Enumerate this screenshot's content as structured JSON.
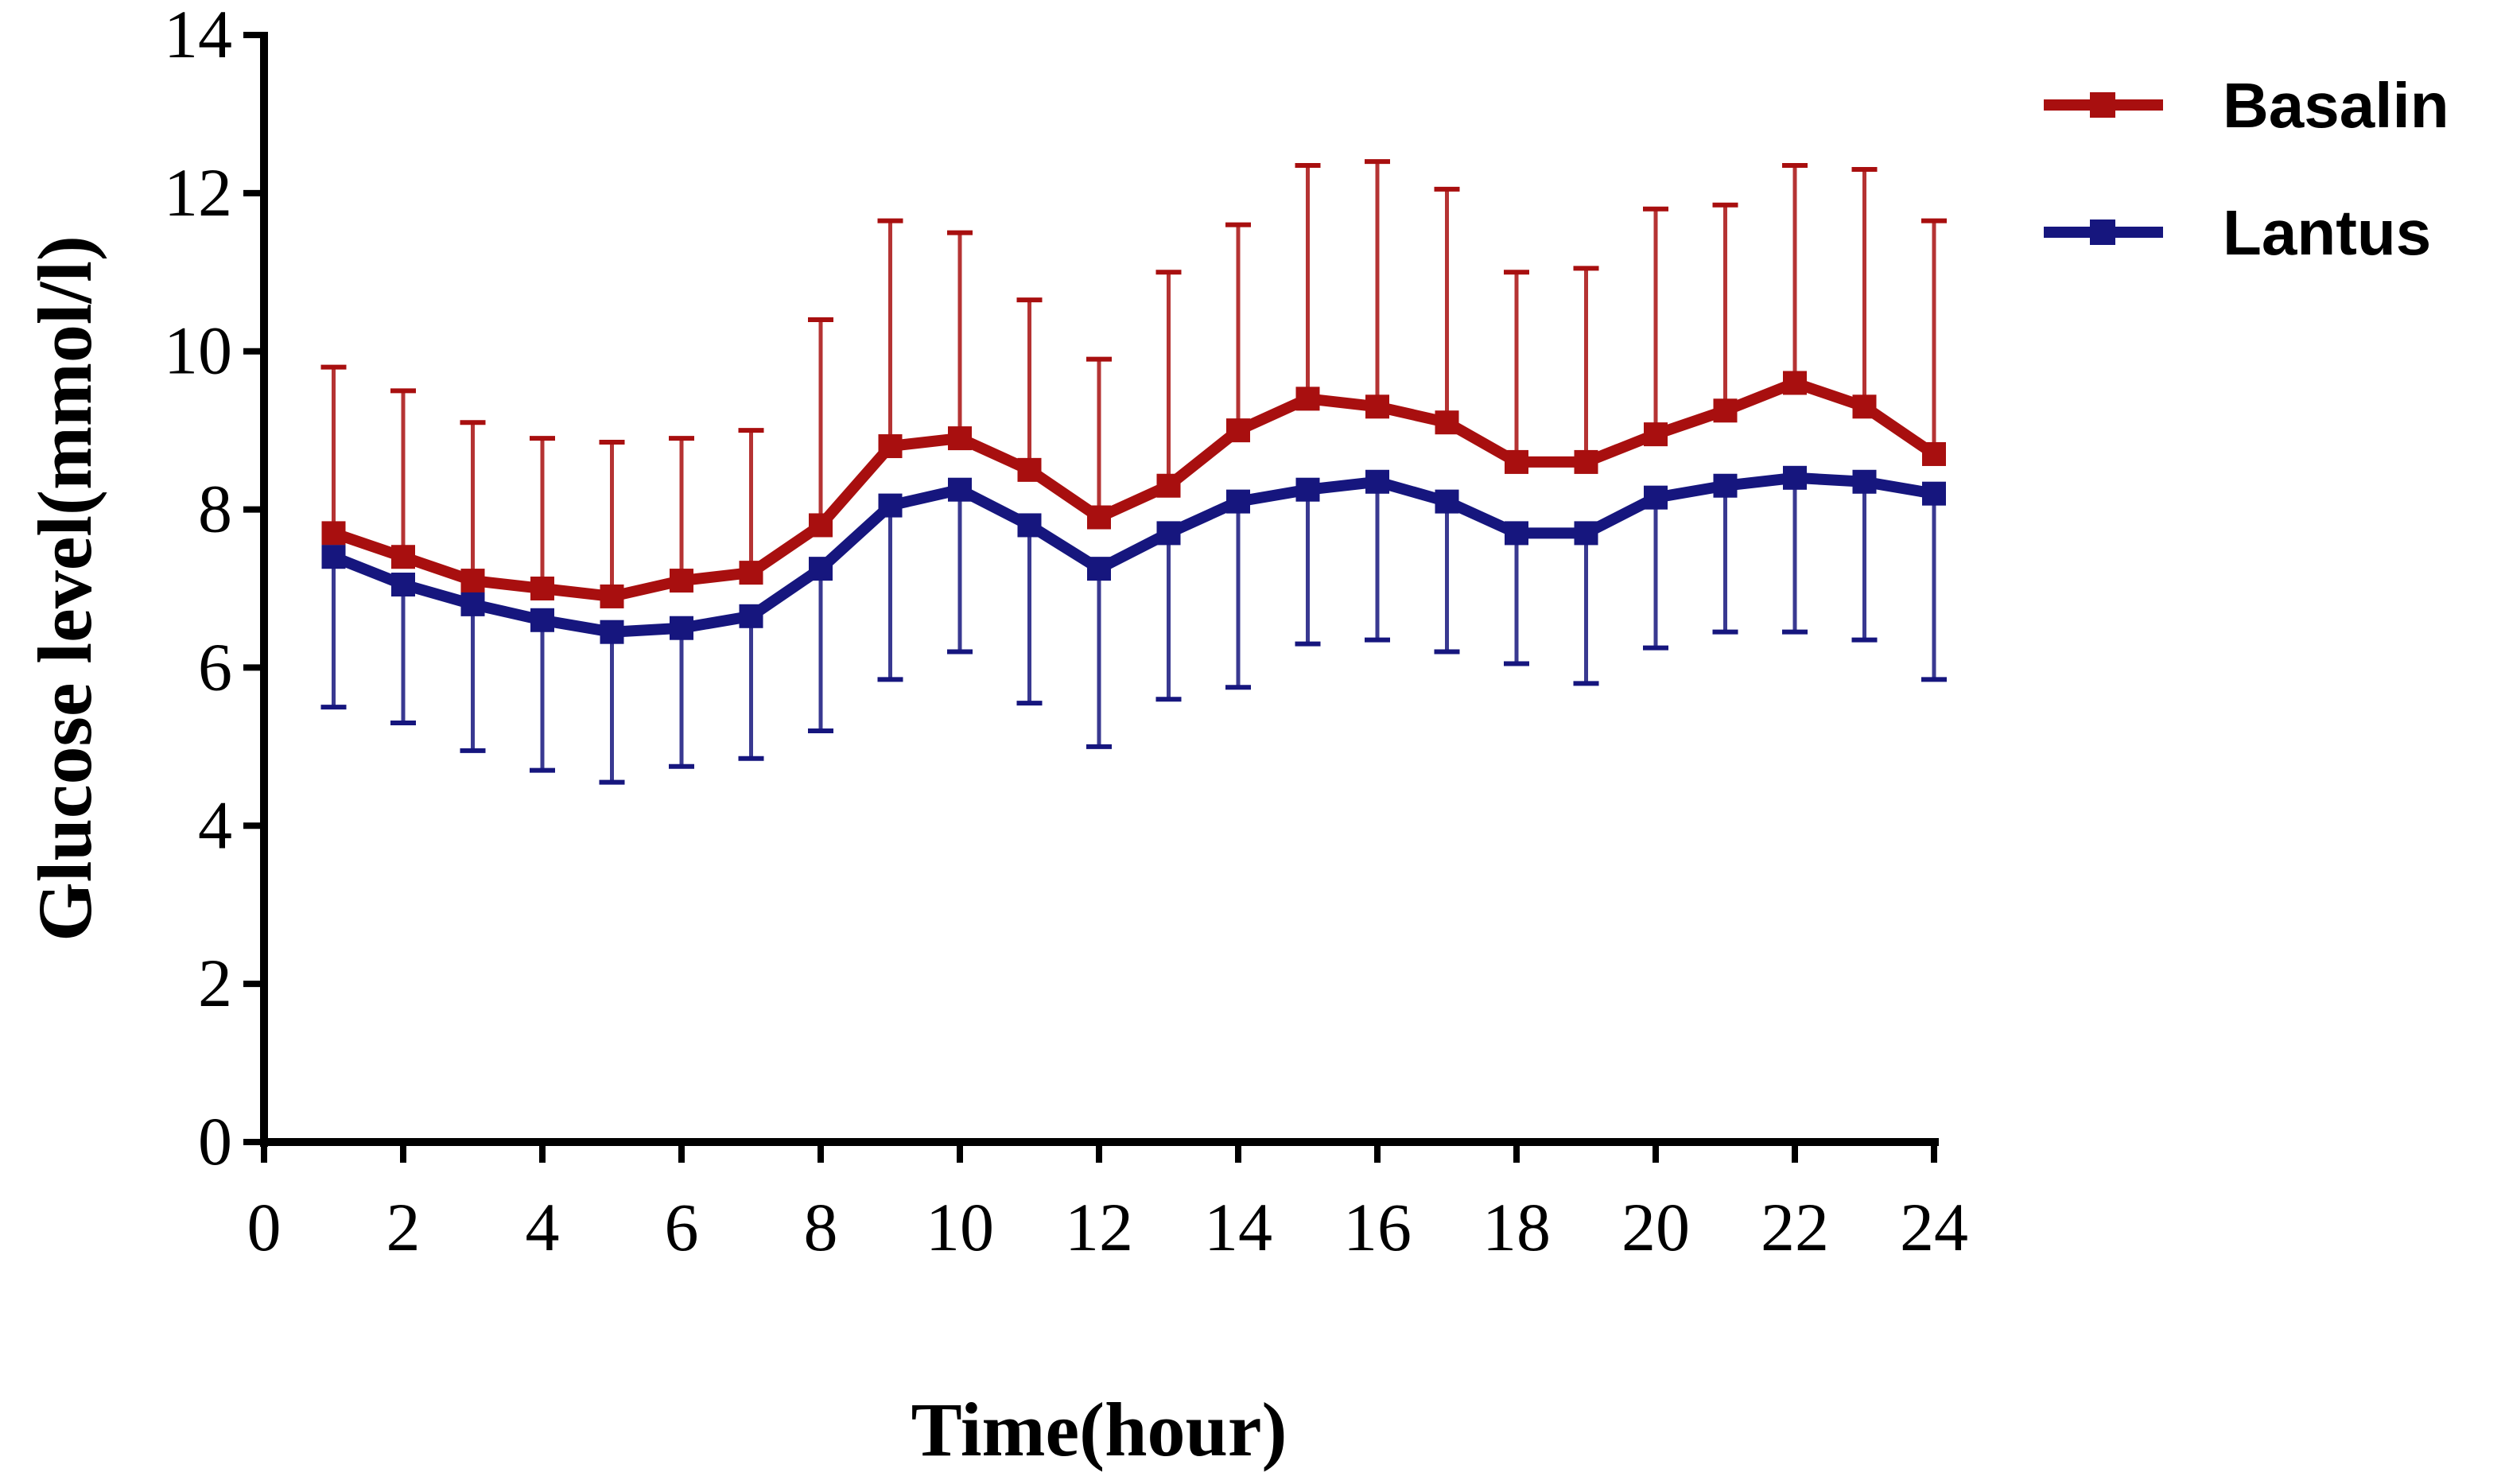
{
  "chart_data": {
    "type": "line",
    "x": [
      1,
      2,
      3,
      4,
      5,
      6,
      7,
      8,
      9,
      10,
      11,
      12,
      13,
      14,
      15,
      16,
      17,
      18,
      19,
      20,
      21,
      22,
      23,
      24
    ],
    "xlabel": "Time(hour)",
    "ylabel": "Glucose level(mmol/l)",
    "xlim": [
      0,
      24
    ],
    "ylim": [
      0,
      14
    ],
    "xticks": [
      "0",
      "2",
      "4",
      "6",
      "8",
      "10",
      "12",
      "14",
      "16",
      "18",
      "20",
      "22",
      "24"
    ],
    "yticks": [
      "0",
      "2",
      "4",
      "6",
      "8",
      "10",
      "12",
      "14"
    ],
    "grid": false,
    "legend_position": "top-right",
    "series": [
      {
        "name": "Basalin",
        "color": "#a80f0f",
        "values": [
          7.7,
          7.4,
          7.1,
          7.0,
          6.9,
          7.1,
          7.2,
          7.8,
          8.8,
          8.9,
          8.5,
          7.9,
          8.3,
          9.0,
          9.4,
          9.3,
          9.1,
          8.6,
          8.6,
          8.95,
          9.25,
          9.6,
          9.3,
          8.7
        ],
        "error": [
          2.1,
          2.1,
          2.0,
          1.9,
          1.95,
          1.8,
          1.8,
          2.6,
          2.85,
          2.6,
          2.15,
          2.0,
          2.7,
          2.6,
          2.95,
          3.1,
          2.95,
          2.4,
          2.45,
          2.85,
          2.6,
          2.75,
          3.0,
          2.95
        ],
        "error_direction": "up"
      },
      {
        "name": "Lantus",
        "color": "#16167e",
        "values": [
          7.4,
          7.05,
          6.8,
          6.6,
          6.45,
          6.5,
          6.65,
          7.25,
          8.05,
          8.25,
          7.8,
          7.25,
          7.7,
          8.1,
          8.25,
          8.35,
          8.1,
          7.7,
          7.7,
          8.15,
          8.3,
          8.4,
          8.35,
          8.2
        ],
        "error": [
          1.9,
          1.75,
          1.85,
          1.9,
          1.9,
          1.75,
          1.8,
          2.05,
          2.2,
          2.05,
          2.25,
          2.25,
          2.1,
          2.35,
          1.95,
          2.0,
          1.9,
          1.65,
          1.9,
          1.9,
          1.85,
          1.95,
          2.0,
          2.35
        ],
        "error_direction": "down"
      }
    ]
  }
}
